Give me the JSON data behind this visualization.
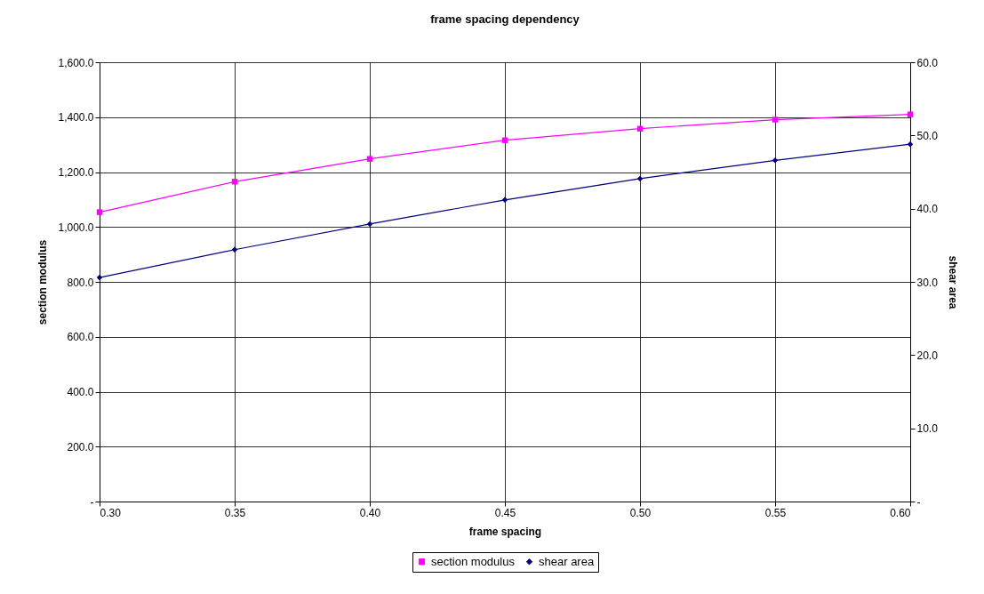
{
  "chart_data": {
    "type": "line",
    "title": "frame spacing dependency",
    "xlabel": "frame spacing",
    "ylabel": "section modulus",
    "y2label": "shear area",
    "x": [
      0.3,
      0.35,
      0.4,
      0.45,
      0.5,
      0.55,
      0.6
    ],
    "series": [
      {
        "name": "section modulus",
        "color": "#ff00ff",
        "marker": "square",
        "values": [
          1054,
          1165,
          1248,
          1316,
          1358,
          1391,
          1410
        ]
      },
      {
        "name": "shear area",
        "color": "#000080",
        "marker": "diamond",
        "axis": "y2",
        "values": [
          30.6,
          34.4,
          37.9,
          41.2,
          44.1,
          46.6,
          48.8
        ]
      }
    ],
    "xlim": [
      0.3,
      0.6
    ],
    "xticks": [
      {
        "value": 0.3,
        "label": "0.30"
      },
      {
        "value": 0.35,
        "label": "0.35"
      },
      {
        "value": 0.4,
        "label": "0.40"
      },
      {
        "value": 0.45,
        "label": "0.45"
      },
      {
        "value": 0.5,
        "label": "0.50"
      },
      {
        "value": 0.55,
        "label": "0.55"
      },
      {
        "value": 0.6,
        "label": "0.60"
      }
    ],
    "ylim": [
      0,
      1600
    ],
    "yticks": [
      {
        "value": 0,
        "label": "-"
      },
      {
        "value": 200,
        "label": "200.0"
      },
      {
        "value": 400,
        "label": "400.0"
      },
      {
        "value": 600,
        "label": "600.0"
      },
      {
        "value": 800,
        "label": "800.0"
      },
      {
        "value": 1000,
        "label": "1,000.0"
      },
      {
        "value": 1200,
        "label": "1,200.0"
      },
      {
        "value": 1400,
        "label": "1,400.0"
      },
      {
        "value": 1600,
        "label": "1,600.0"
      }
    ],
    "y2lim": [
      0,
      60
    ],
    "y2ticks": [
      {
        "value": 0,
        "label": "-"
      },
      {
        "value": 10,
        "label": "10.0"
      },
      {
        "value": 20,
        "label": "20.0"
      },
      {
        "value": 30,
        "label": "30.0"
      },
      {
        "value": 40,
        "label": "40.0"
      },
      {
        "value": 50,
        "label": "50.0"
      },
      {
        "value": 60,
        "label": "60.0"
      }
    ],
    "grid": true,
    "legend": "bottom"
  }
}
